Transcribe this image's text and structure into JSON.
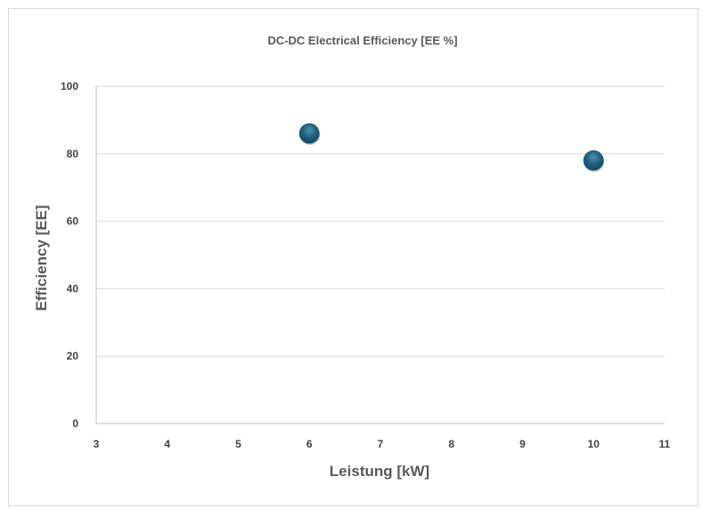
{
  "chart_data": {
    "type": "scatter",
    "title": "DC-DC Electrical Efficiency [EE %]",
    "xlabel": "Leistung [kW]",
    "ylabel": "Efficiency [EE]",
    "xlim": [
      3,
      11
    ],
    "ylim": [
      0,
      100
    ],
    "xticks": [
      3,
      4,
      5,
      6,
      7,
      8,
      9,
      10,
      11
    ],
    "yticks": [
      0,
      20,
      40,
      60,
      80,
      100
    ],
    "grid": true,
    "legend": "none",
    "series": [
      {
        "x": [
          6,
          10
        ],
        "y": [
          86,
          78
        ],
        "color": "#1f5f7e"
      }
    ]
  }
}
